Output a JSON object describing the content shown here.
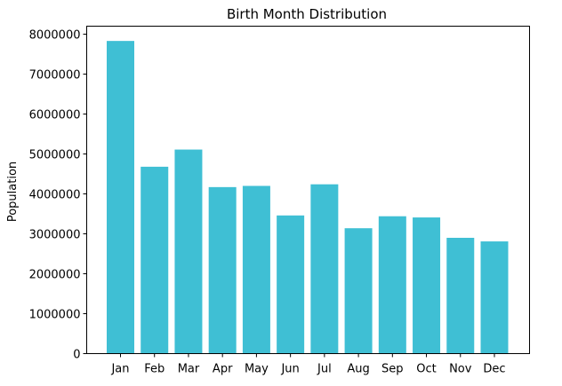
{
  "chart_data": {
    "type": "bar",
    "title": "Birth Month Distribution",
    "xlabel": "",
    "ylabel": "Population",
    "categories": [
      "Jan",
      "Feb",
      "Mar",
      "Apr",
      "May",
      "Jun",
      "Jul",
      "Aug",
      "Sep",
      "Oct",
      "Nov",
      "Dec"
    ],
    "values": [
      7830000,
      4680000,
      5110000,
      4170000,
      4200000,
      3460000,
      4240000,
      3140000,
      3440000,
      3410000,
      2900000,
      2810000
    ],
    "ylim": [
      0,
      8200000
    ],
    "yticks": [
      0,
      1000000,
      2000000,
      3000000,
      4000000,
      5000000,
      6000000,
      7000000,
      8000000
    ],
    "ytick_labels": [
      "0",
      "1000000",
      "2000000",
      "3000000",
      "4000000",
      "5000000",
      "6000000",
      "7000000",
      "8000000"
    ],
    "bar_color": "#3fbfd4",
    "grid": false,
    "legend": "none"
  }
}
